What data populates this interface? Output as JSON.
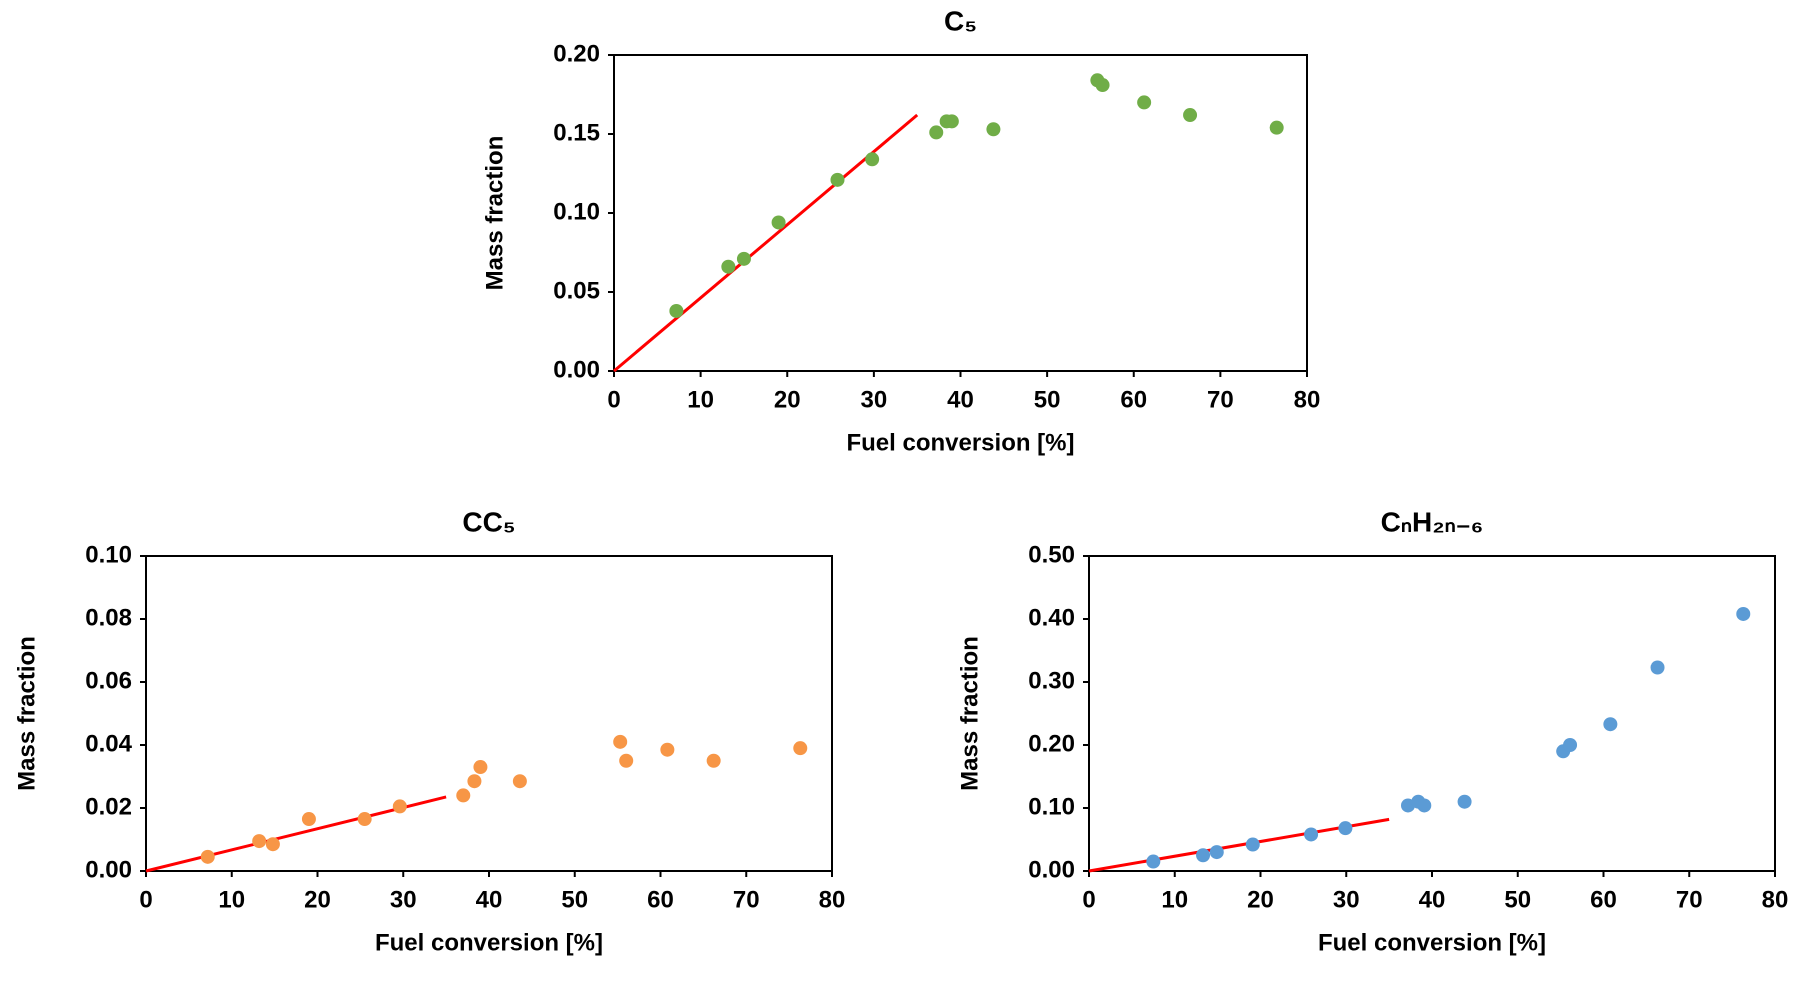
{
  "chart_data": [
    {
      "type": "scatter",
      "title": "C₅",
      "x_label": "Fuel conversion [%]",
      "y_label": "Mass fraction",
      "x": [
        7.2,
        13.2,
        15,
        19,
        25.8,
        29.8,
        37.2,
        38.4,
        39,
        43.8,
        55.8,
        56.4,
        61.2,
        66.5,
        76.5
      ],
      "values": [
        0.038,
        0.066,
        0.071,
        0.094,
        0.121,
        0.134,
        0.151,
        0.158,
        0.158,
        0.153,
        0.184,
        0.181,
        0.17,
        0.162,
        0.154
      ],
      "color": "#70ad47",
      "fit": {
        "x": [
          0,
          35
        ],
        "values": [
          0,
          0.162
        ],
        "color": "#ff0000"
      },
      "xlim": [
        0,
        80
      ],
      "xticks": [
        0,
        10,
        20,
        30,
        40,
        50,
        60,
        70,
        80
      ],
      "ylim": [
        0,
        0.2
      ],
      "yticks": [
        {
          "value": 0,
          "label": "0.00"
        },
        {
          "value": 0.05,
          "label": "0.05"
        },
        {
          "value": 0.1,
          "label": "0.10"
        },
        {
          "value": 0.15,
          "label": "0.15"
        },
        {
          "value": 0.2,
          "label": "0.20"
        }
      ]
    },
    {
      "type": "scatter",
      "title": "CC₅",
      "x_label": "Fuel conversion [%]",
      "y_label": "Mass fraction",
      "x": [
        7.2,
        13.2,
        14.8,
        19,
        25.5,
        29.6,
        37,
        38.3,
        39,
        43.6,
        55.3,
        56,
        60.8,
        66.2,
        76.3
      ],
      "values": [
        0.0045,
        0.0095,
        0.0085,
        0.0165,
        0.0165,
        0.0205,
        0.024,
        0.0285,
        0.033,
        0.0285,
        0.041,
        0.035,
        0.0385,
        0.035,
        0.039
      ],
      "color": "#f79646",
      "fit": {
        "x": [
          0,
          35
        ],
        "values": [
          0,
          0.0235
        ],
        "color": "#ff0000"
      },
      "xlim": [
        0,
        80
      ],
      "xticks": [
        0,
        10,
        20,
        30,
        40,
        50,
        60,
        70,
        80
      ],
      "ylim": [
        0,
        0.1
      ],
      "yticks": [
        {
          "value": 0,
          "label": "0.00"
        },
        {
          "value": 0.02,
          "label": "0.02"
        },
        {
          "value": 0.04,
          "label": "0.04"
        },
        {
          "value": 0.06,
          "label": "0.06"
        },
        {
          "value": 0.08,
          "label": "0.08"
        },
        {
          "value": 0.1,
          "label": "0.10"
        }
      ]
    },
    {
      "type": "scatter",
      "title": "CₙH₂ₙ₋₆",
      "x_label": "Fuel conversion [%]",
      "y_label": "Mass fraction",
      "x": [
        7.5,
        13.3,
        14.9,
        19.1,
        25.9,
        29.9,
        37.2,
        38.4,
        39.1,
        43.8,
        55.3,
        56.1,
        60.8,
        66.3,
        76.3
      ],
      "values": [
        0.015,
        0.025,
        0.03,
        0.042,
        0.058,
        0.068,
        0.104,
        0.11,
        0.104,
        0.11,
        0.19,
        0.2,
        0.233,
        0.323,
        0.408
      ],
      "color": "#5b9bd5",
      "fit": {
        "x": [
          0,
          35
        ],
        "values": [
          0,
          0.082
        ],
        "color": "#ff0000"
      },
      "xlim": [
        0,
        80
      ],
      "xticks": [
        0,
        10,
        20,
        30,
        40,
        50,
        60,
        70,
        80
      ],
      "ylim": [
        0,
        0.5
      ],
      "yticks": [
        {
          "value": 0,
          "label": "0.00"
        },
        {
          "value": 0.1,
          "label": "0.10"
        },
        {
          "value": 0.2,
          "label": "0.20"
        },
        {
          "value": 0.3,
          "label": "0.30"
        },
        {
          "value": 0.4,
          "label": "0.40"
        },
        {
          "value": 0.5,
          "label": "0.50"
        }
      ]
    }
  ]
}
